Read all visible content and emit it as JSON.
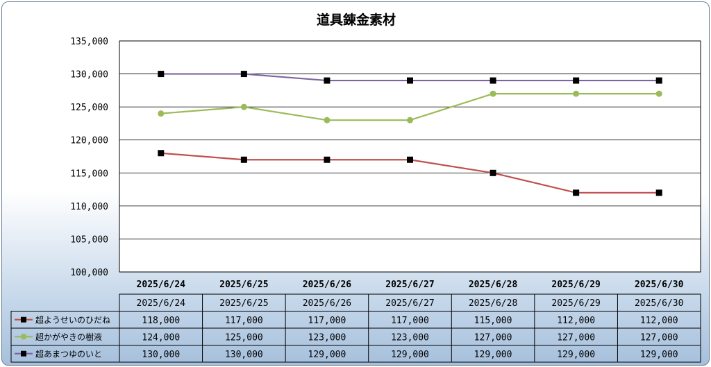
{
  "chart_data": {
    "type": "line",
    "title": "道具錬金素材",
    "categories": [
      "2025/6/24",
      "2025/6/25",
      "2025/6/26",
      "2025/6/27",
      "2025/6/28",
      "2025/6/29",
      "2025/6/30"
    ],
    "ylim": [
      100000,
      135000
    ],
    "yticks": [
      "100,000",
      "105,000",
      "110,000",
      "115,000",
      "120,000",
      "125,000",
      "130,000",
      "135,000"
    ],
    "grid": true,
    "data_table": true,
    "series": [
      {
        "name": "超ようせいのひだね",
        "values": [
          118000,
          117000,
          117000,
          117000,
          115000,
          112000,
          112000
        ],
        "labels": [
          "118,000",
          "117,000",
          "117,000",
          "117,000",
          "115,000",
          "112,000",
          "112,000"
        ],
        "color": "#c0504d",
        "marker_color": "#000000",
        "marker": "square"
      },
      {
        "name": "超かがやきの樹液",
        "values": [
          124000,
          125000,
          123000,
          123000,
          127000,
          127000,
          127000
        ],
        "labels": [
          "124,000",
          "125,000",
          "123,000",
          "123,000",
          "127,000",
          "127,000",
          "127,000"
        ],
        "color": "#9bbb59",
        "marker_color": "#9bbb59",
        "marker": "circle"
      },
      {
        "name": "超あまつゆのいと",
        "values": [
          130000,
          130000,
          129000,
          129000,
          129000,
          129000,
          129000
        ],
        "labels": [
          "130,000",
          "130,000",
          "129,000",
          "129,000",
          "129,000",
          "129,000",
          "129,000"
        ],
        "color": "#8064a2",
        "marker_color": "#000000",
        "marker": "square"
      }
    ]
  }
}
